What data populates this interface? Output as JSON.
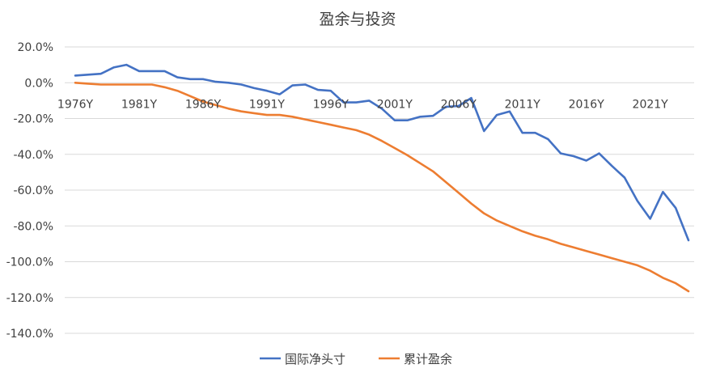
{
  "chart_data": {
    "type": "line",
    "title": "盈余与投资",
    "xlabel": "",
    "ylabel": "",
    "ylim": [
      -140,
      20
    ],
    "yticks": [
      20,
      0,
      -20,
      -40,
      -60,
      -80,
      -100,
      -120,
      -140
    ],
    "ytick_labels": [
      "20.0%",
      "0.0%",
      "-20.0%",
      "-40.0%",
      "-60.0%",
      "-80.0%",
      "-100.0%",
      "-120.0%",
      "-140.0%"
    ],
    "x": [
      1976,
      1977,
      1978,
      1979,
      1980,
      1981,
      1982,
      1983,
      1984,
      1985,
      1986,
      1987,
      1988,
      1989,
      1990,
      1991,
      1992,
      1993,
      1994,
      1995,
      1996,
      1997,
      1998,
      1999,
      2000,
      2001,
      2002,
      2003,
      2004,
      2005,
      2006,
      2007,
      2008,
      2009,
      2010,
      2011,
      2012,
      2013,
      2014,
      2015,
      2016,
      2017,
      2018,
      2019,
      2020,
      2021,
      2022,
      2023,
      2024
    ],
    "xlim": [
      1976,
      2024
    ],
    "xticks": [
      1976,
      1981,
      1986,
      1991,
      1996,
      2001,
      2006,
      2011,
      2016,
      2021
    ],
    "xtick_labels": [
      "1976Y",
      "1981Y",
      "1986Y",
      "1991Y",
      "1996Y",
      "2001Y",
      "2006Y",
      "2011Y",
      "2016Y",
      "2021Y"
    ],
    "grid": true,
    "legend_position": "bottom",
    "series": [
      {
        "name": "国际净头寸",
        "color": "#4472C4",
        "values": [
          4,
          4.5,
          5,
          8.5,
          10,
          6.5,
          6.5,
          6.5,
          3,
          2,
          2,
          0.5,
          0,
          -1,
          -3,
          -4.5,
          -6.5,
          -1.5,
          -1,
          -4,
          -4.5,
          -11,
          -11,
          -10,
          -14.5,
          -21,
          -21,
          -19,
          -18.5,
          -13.5,
          -13,
          -8.5,
          -27,
          -18,
          -16,
          -28,
          -28,
          -31.5,
          -39.5,
          -41,
          -43.5,
          -39.5,
          -46.5,
          -53,
          -66,
          -76,
          -61,
          -70,
          -88
        ]
      },
      {
        "name": "累计盈余",
        "color": "#ED7D31",
        "values": [
          0,
          -0.5,
          -1,
          -1,
          -1,
          -1,
          -1,
          -2.5,
          -4.5,
          -7.5,
          -10.5,
          -12.5,
          -14.5,
          -16,
          -17,
          -18,
          -18,
          -19,
          -20.5,
          -22,
          -23.5,
          -25,
          -26.5,
          -29,
          -32.5,
          -36.5,
          -40.5,
          -45,
          -49.5,
          -55.5,
          -61.5,
          -67.5,
          -73,
          -77,
          -80,
          -83,
          -85.5,
          -87.5,
          -90,
          -92,
          -94,
          -96,
          -98,
          -100,
          -102,
          -105,
          -109,
          -112,
          -116.5
        ]
      }
    ]
  }
}
